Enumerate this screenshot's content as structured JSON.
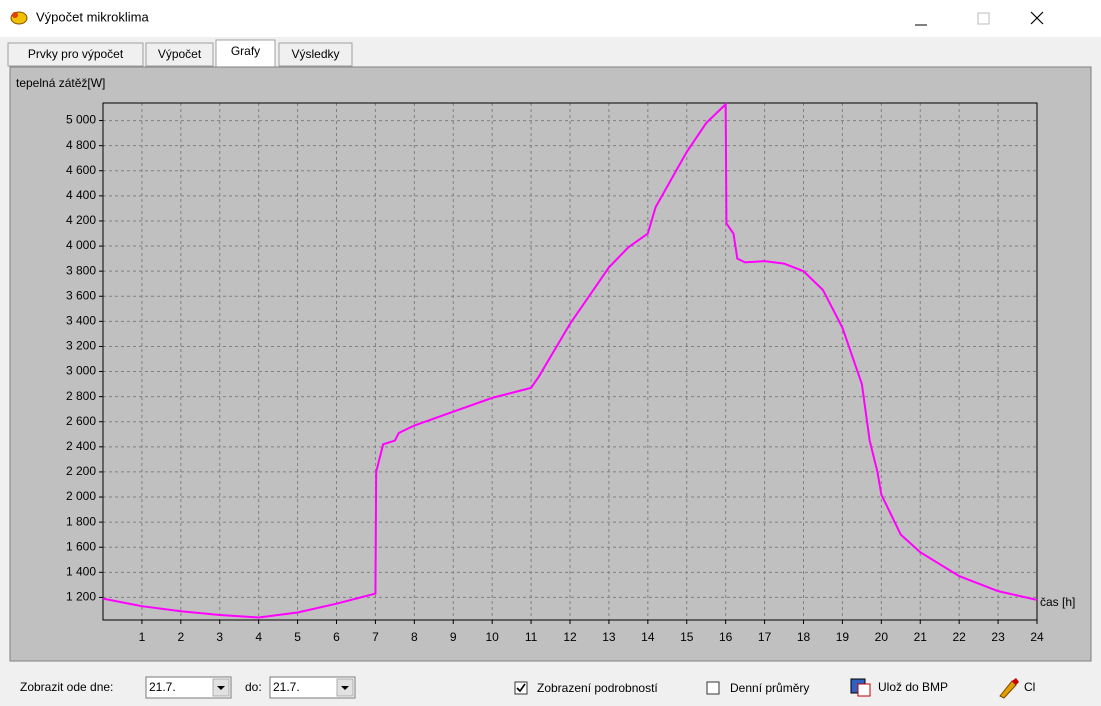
{
  "window": {
    "title": "Výpočet mikroklima"
  },
  "tabs": [
    "Prvky pro výpočet",
    "Výpočet",
    "Grafy",
    "Výsledky"
  ],
  "active_tab": 2,
  "chart_data": {
    "type": "line",
    "y_label": "tepelná zátěž[W]",
    "x_label": "čas [h]",
    "x": [
      0,
      1,
      2,
      3,
      4,
      5,
      6,
      7,
      7.02,
      7.1,
      7.2,
      7.5,
      7.6,
      8,
      9,
      10,
      11,
      11.2,
      12,
      13,
      13.5,
      14,
      14.2,
      15,
      15.5,
      16,
      16.02,
      16.2,
      16.3,
      16.5,
      17,
      17.5,
      18,
      18.5,
      19,
      19.5,
      19.7,
      19.9,
      20,
      20.5,
      21,
      22,
      23,
      24
    ],
    "series": [
      {
        "color": "#ff00ff",
        "values": [
          1190,
          1130,
          1090,
          1060,
          1040,
          1080,
          1150,
          1230,
          2200,
          2300,
          2420,
          2450,
          2510,
          2570,
          2680,
          2790,
          2870,
          2960,
          3380,
          3830,
          3990,
          4100,
          4310,
          4750,
          4980,
          5130,
          4180,
          4100,
          3900,
          3870,
          3880,
          3860,
          3800,
          3650,
          3350,
          2900,
          2450,
          2200,
          2020,
          1700,
          1560,
          1370,
          1250,
          1180
        ]
      }
    ],
    "xlim": [
      0,
      24
    ],
    "xticks": [
      1,
      2,
      3,
      4,
      5,
      6,
      7,
      8,
      9,
      10,
      11,
      12,
      13,
      14,
      15,
      16,
      17,
      18,
      19,
      20,
      21,
      22,
      23,
      24
    ],
    "ylim": [
      1020,
      5140
    ],
    "yticks": [
      {
        "value": 1200,
        "label": "1 200"
      },
      {
        "value": 1400,
        "label": "1 400"
      },
      {
        "value": 1600,
        "label": "1 600"
      },
      {
        "value": 1800,
        "label": "1 800"
      },
      {
        "value": 2000,
        "label": "2 000"
      },
      {
        "value": 2200,
        "label": "2 200"
      },
      {
        "value": 2400,
        "label": "2 400"
      },
      {
        "value": 2600,
        "label": "2 600"
      },
      {
        "value": 2800,
        "label": "2 800"
      },
      {
        "value": 3000,
        "label": "3 000"
      },
      {
        "value": 3200,
        "label": "3 200"
      },
      {
        "value": 3400,
        "label": "3 400"
      },
      {
        "value": 3600,
        "label": "3 600"
      },
      {
        "value": 3800,
        "label": "3 800"
      },
      {
        "value": 4000,
        "label": "4 000"
      },
      {
        "value": 4200,
        "label": "4 200"
      },
      {
        "value": 4400,
        "label": "4 400"
      },
      {
        "value": 4600,
        "label": "4 600"
      },
      {
        "value": 4800,
        "label": "4 800"
      },
      {
        "value": 5000,
        "label": "5 000"
      }
    ],
    "grid": true
  },
  "controls": {
    "from_label": "Zobrazit ode dne:",
    "from_value": "21.7.",
    "to_label": "do:",
    "to_value": "21.7.",
    "details": {
      "label": "Zobrazení podrobností",
      "checked": true
    },
    "daily": {
      "label": "Denní průměry",
      "checked": false
    },
    "save_button": "Ulož do BMP",
    "clear_button": "Cl"
  }
}
